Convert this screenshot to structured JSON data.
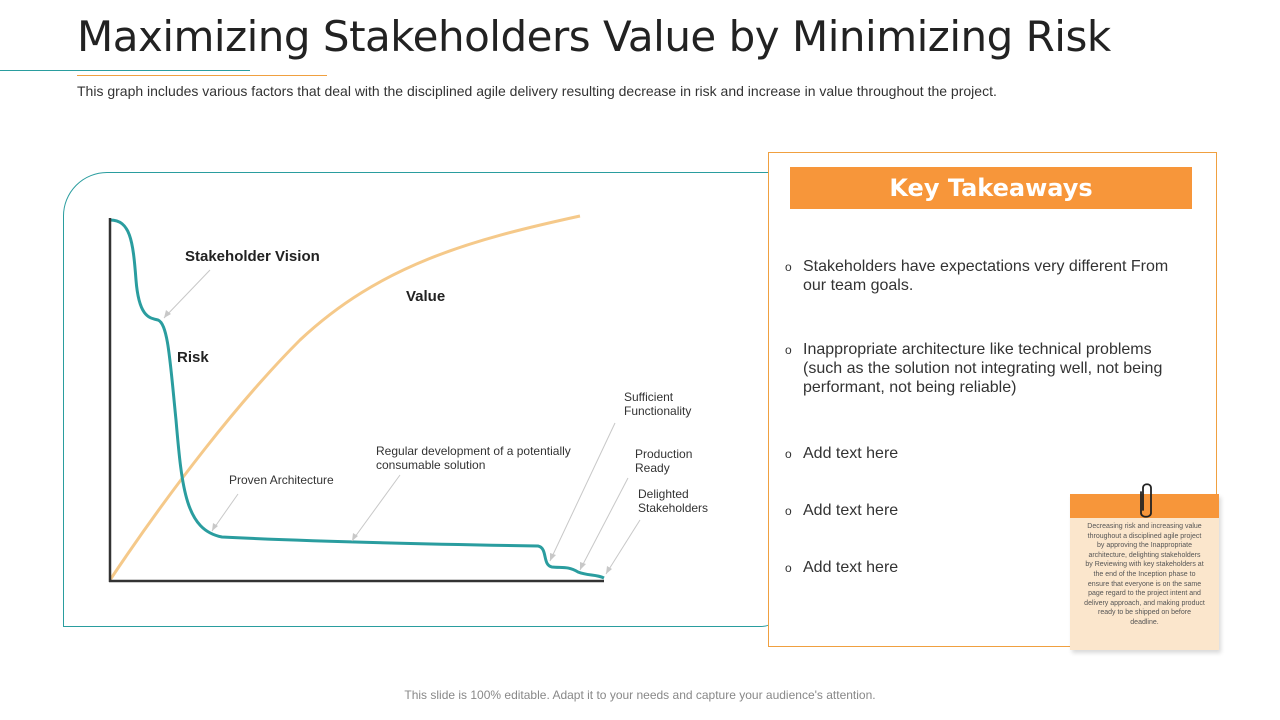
{
  "header": {
    "title": "Maximizing Stakeholders Value by Minimizing Risk",
    "subtitle": "This graph includes various factors that deal with the disciplined agile delivery resulting decrease in risk and increase in value throughout the project."
  },
  "diagram": {
    "labels": {
      "stakeholder_vision": "Stakeholder Vision",
      "value": "Value",
      "risk": "Risk",
      "proven_architecture": "Proven Architecture",
      "regular_development": "Regular development of a potentially consumable solution",
      "sufficient_functionality": "Sufficient Functionality",
      "production_ready": "Production Ready",
      "delighted_stakeholders": "Delighted Stakeholders"
    },
    "colors": {
      "risk_line": "#2a9d9f",
      "value_line": "#f5c98a",
      "axis": "#333333",
      "pointer": "#c8c8c8"
    }
  },
  "takeaways": {
    "title": "Key Takeaways",
    "bullet_marker": "o",
    "items": [
      "Stakeholders have expectations very different From our team goals.",
      "Inappropriate architecture like technical problems (such as the solution not integrating well, not being performant, not being reliable)",
      "Add text here",
      "Add text here",
      "Add text here"
    ]
  },
  "note": {
    "icon": "paperclip-icon",
    "text": "Decreasing risk and increasing value throughout a disciplined agile project by approving the Inappropriate architecture, delighting stakeholders by Reviewing with key stakeholders at the end of the Inception phase to ensure that everyone is on the same page regard to the project intent and delivery approach, and making product ready to be shipped on before deadline."
  },
  "footer": {
    "text": "This slide is 100% editable. Adapt it to your needs and capture your audience's attention."
  },
  "colors": {
    "accent_orange": "#f7963a",
    "accent_teal": "#2a9d9f",
    "note_bg": "#fbe6cc"
  }
}
